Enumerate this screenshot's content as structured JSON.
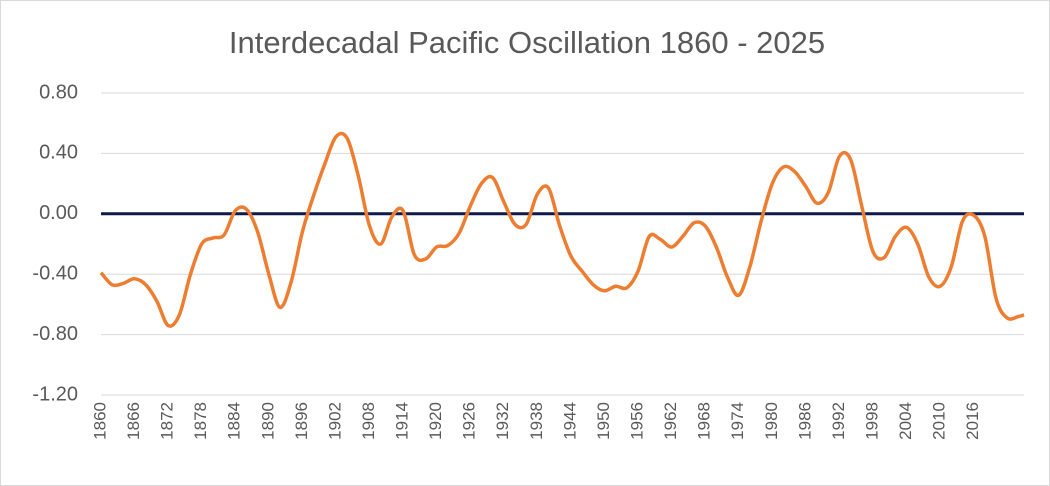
{
  "chart_data": {
    "type": "line",
    "title": "Interdecadal Pacific Oscillation 1860 - 2025",
    "x": [
      1860,
      1862,
      1864,
      1866,
      1868,
      1870,
      1872,
      1874,
      1876,
      1878,
      1880,
      1882,
      1884,
      1886,
      1888,
      1890,
      1892,
      1894,
      1896,
      1898,
      1900,
      1902,
      1904,
      1906,
      1908,
      1910,
      1912,
      1914,
      1916,
      1918,
      1920,
      1922,
      1924,
      1926,
      1928,
      1930,
      1932,
      1934,
      1936,
      1938,
      1940,
      1942,
      1944,
      1946,
      1948,
      1950,
      1952,
      1954,
      1956,
      1958,
      1960,
      1962,
      1964,
      1966,
      1968,
      1970,
      1972,
      1974,
      1976,
      1978,
      1980,
      1982,
      1984,
      1986,
      1988,
      1990,
      1992,
      1994,
      1996,
      1998,
      2000,
      2002,
      2004,
      2006,
      2008,
      2010,
      2012,
      2014,
      2016,
      2018,
      2020,
      2022,
      2024,
      2025
    ],
    "series": [
      {
        "color": "#ed7d31",
        "values": [
          -0.39,
          -0.47,
          -0.46,
          -0.43,
          -0.47,
          -0.58,
          -0.74,
          -0.67,
          -0.4,
          -0.2,
          -0.16,
          -0.14,
          0.02,
          0.03,
          -0.12,
          -0.4,
          -0.62,
          -0.45,
          -0.12,
          0.12,
          0.33,
          0.51,
          0.5,
          0.25,
          -0.08,
          -0.2,
          -0.02,
          0.02,
          -0.27,
          -0.3,
          -0.22,
          -0.21,
          -0.13,
          0.05,
          0.2,
          0.24,
          0.08,
          -0.07,
          -0.07,
          0.13,
          0.17,
          -0.08,
          -0.28,
          -0.38,
          -0.47,
          -0.51,
          -0.48,
          -0.49,
          -0.38,
          -0.15,
          -0.17,
          -0.22,
          -0.15,
          -0.06,
          -0.08,
          -0.22,
          -0.42,
          -0.54,
          -0.35,
          -0.05,
          0.2,
          0.31,
          0.28,
          0.18,
          0.07,
          0.14,
          0.38,
          0.36,
          0.05,
          -0.25,
          -0.29,
          -0.15,
          -0.09,
          -0.2,
          -0.42,
          -0.48,
          -0.35,
          -0.05,
          -0.01,
          -0.15,
          -0.56,
          -0.69,
          -0.68,
          -0.67
        ]
      }
    ],
    "xlim": [
      1860,
      2025
    ],
    "xticks": [
      1860,
      1866,
      1872,
      1878,
      1884,
      1890,
      1896,
      1902,
      1908,
      1914,
      1920,
      1926,
      1932,
      1938,
      1944,
      1950,
      1956,
      1962,
      1968,
      1974,
      1980,
      1986,
      1992,
      1998,
      2004,
      2010,
      2016
    ],
    "ylim": [
      -1.2,
      0.8
    ],
    "yticks": [
      {
        "value": -1.2,
        "label": "-1.20"
      },
      {
        "value": -0.8,
        "label": "-0.80"
      },
      {
        "value": -0.4,
        "label": "-0.40"
      },
      {
        "value": 0,
        "label": "0.00"
      },
      {
        "value": 0.4,
        "label": "0.40"
      },
      {
        "value": 0.8,
        "label": "0.80"
      }
    ],
    "grid": true,
    "axis_color": "#0f1a4a"
  }
}
